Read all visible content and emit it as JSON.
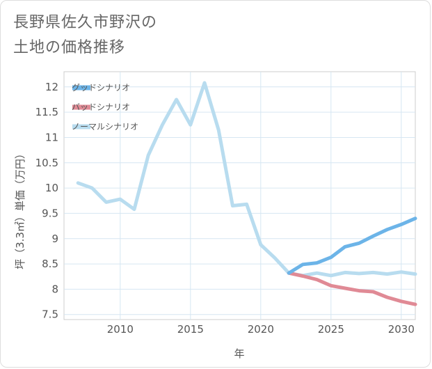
{
  "chart_data": {
    "type": "line",
    "title_lines": [
      "長野県佐久市野沢の",
      "土地の価格推移"
    ],
    "xlabel": "年",
    "ylabel": "坪（3.3㎡）単価（万円）",
    "xlim": [
      2006,
      2031
    ],
    "ylim": [
      7.4,
      12.3
    ],
    "xticks": [
      2010,
      2015,
      2020,
      2025,
      2030
    ],
    "yticks": [
      7.5,
      8,
      8.5,
      9,
      9.5,
      10,
      10.5,
      11,
      11.5,
      12
    ],
    "legend_position": "top-left",
    "grid": true,
    "series": [
      {
        "name": "グッドシナリオ",
        "color": "#6cb4e8",
        "x": [
          2022,
          2023,
          2024,
          2025,
          2026,
          2027,
          2028,
          2029,
          2030,
          2031
        ],
        "values": [
          8.32,
          8.49,
          8.52,
          8.63,
          8.84,
          8.91,
          9.05,
          9.18,
          9.28,
          9.4
        ]
      },
      {
        "name": "バッドシナリオ",
        "color": "#e08a95",
        "x": [
          2022,
          2023,
          2024,
          2025,
          2026,
          2027,
          2028,
          2029,
          2030,
          2031
        ],
        "values": [
          8.32,
          8.26,
          8.19,
          8.07,
          8.02,
          7.97,
          7.95,
          7.84,
          7.76,
          7.7
        ]
      },
      {
        "name": "ノーマルシナリオ",
        "color": "#b8dcef",
        "x": [
          2007,
          2008,
          2009,
          2010,
          2011,
          2012,
          2013,
          2014,
          2015,
          2016,
          2017,
          2018,
          2019,
          2020,
          2021,
          2022,
          2023,
          2024,
          2025,
          2026,
          2027,
          2028,
          2029,
          2030,
          2031
        ],
        "values": [
          10.1,
          10.0,
          9.72,
          9.78,
          9.58,
          10.65,
          11.25,
          11.75,
          11.25,
          12.08,
          11.15,
          9.65,
          9.68,
          8.88,
          8.62,
          8.32,
          8.27,
          8.32,
          8.27,
          8.33,
          8.31,
          8.33,
          8.3,
          8.34,
          8.3
        ]
      }
    ]
  }
}
